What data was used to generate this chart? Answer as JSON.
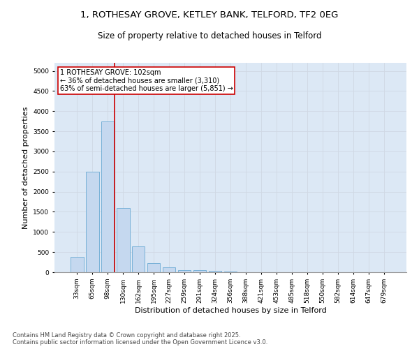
{
  "title_line1": "1, ROTHESAY GROVE, KETLEY BANK, TELFORD, TF2 0EG",
  "title_line2": "Size of property relative to detached houses in Telford",
  "xlabel": "Distribution of detached houses by size in Telford",
  "ylabel": "Number of detached properties",
  "categories": [
    "33sqm",
    "65sqm",
    "98sqm",
    "130sqm",
    "162sqm",
    "195sqm",
    "227sqm",
    "259sqm",
    "291sqm",
    "324sqm",
    "356sqm",
    "388sqm",
    "421sqm",
    "453sqm",
    "485sqm",
    "518sqm",
    "550sqm",
    "582sqm",
    "614sqm",
    "647sqm",
    "679sqm"
  ],
  "values": [
    375,
    2500,
    3750,
    1600,
    650,
    225,
    120,
    55,
    55,
    30,
    20,
    8,
    5,
    3,
    2,
    2,
    1,
    1,
    1,
    0,
    0
  ],
  "bar_color": "#c5d8ef",
  "bar_edge_color": "#6aaad4",
  "vline_color": "#cc0000",
  "annotation_text": "1 ROTHESAY GROVE: 102sqm\n← 36% of detached houses are smaller (3,310)\n63% of semi-detached houses are larger (5,851) →",
  "annotation_box_color": "#cc0000",
  "ylim": [
    0,
    5200
  ],
  "yticks": [
    0,
    500,
    1000,
    1500,
    2000,
    2500,
    3000,
    3500,
    4000,
    4500,
    5000
  ],
  "grid_color": "#d0d8e4",
  "bg_color": "#dce8f5",
  "footer_line1": "Contains HM Land Registry data © Crown copyright and database right 2025.",
  "footer_line2": "Contains public sector information licensed under the Open Government Licence v3.0.",
  "title_fontsize": 9.5,
  "subtitle_fontsize": 8.5,
  "xlabel_fontsize": 8,
  "ylabel_fontsize": 8,
  "tick_fontsize": 6.5,
  "annotation_fontsize": 7,
  "footer_fontsize": 6
}
